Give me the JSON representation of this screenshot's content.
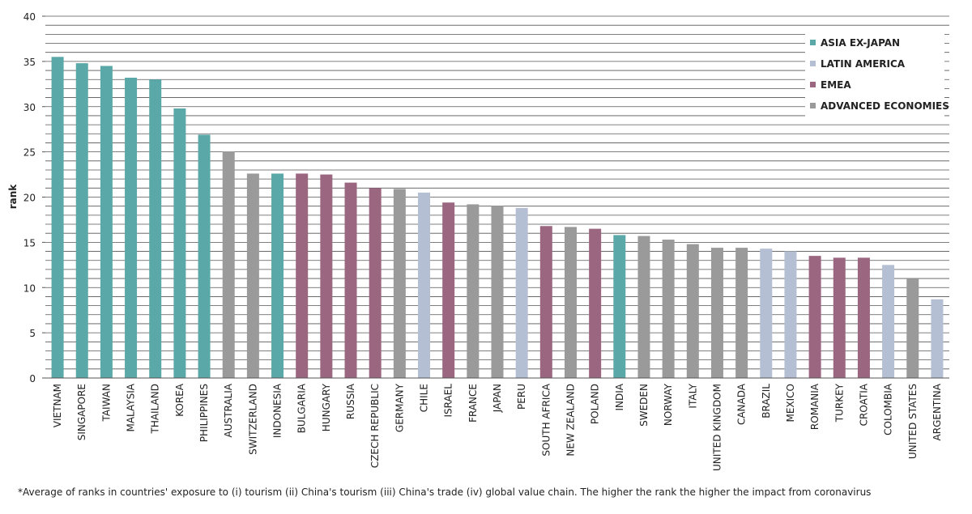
{
  "chart_data": {
    "type": "bar",
    "y_label": "rank",
    "footnote": "*Average of ranks in countries' exposure to (i) tourism (ii) China's tourism (iii) China's trade (iv) global value chain. The higher the rank the higher the impact from coronavirus",
    "categories": [
      "VIETNAM",
      "SINGAPORE",
      "TAIWAN",
      "MALAYSIA",
      "THAILAND",
      "KOREA",
      "PHILIPPINES",
      "AUSTRALIA",
      "SWITZERLAND",
      "INDONESIA",
      "BULGARIA",
      "HUNGARY",
      "RUSSIA",
      "CZECH REPUBLIC",
      "GERMANY",
      "CHILE",
      "ISRAEL",
      "FRANCE",
      "JAPAN",
      "PERU",
      "SOUTH AFRICA",
      "NEW ZEALAND",
      "POLAND",
      "INDIA",
      "SWEDEN",
      "NORWAY",
      "ITALY",
      "UNITED KINGDOM",
      "CANADA",
      "BRAZIL",
      "MEXICO",
      "ROMANIA",
      "TURKEY",
      "CROATIA",
      "COLOMBIA",
      "UNITED STATES",
      "ARGENTINA"
    ],
    "series": [
      {
        "name": "ASIA EX-JAPAN",
        "color": "#5ba8a8",
        "values": [
          35.5,
          34.8,
          34.5,
          33.2,
          33.0,
          29.8,
          26.9,
          null,
          null,
          22.6,
          null,
          null,
          null,
          null,
          null,
          null,
          null,
          null,
          null,
          null,
          null,
          null,
          null,
          15.8,
          null,
          null,
          null,
          null,
          null,
          null,
          null,
          null,
          null,
          null,
          null,
          null,
          null
        ]
      },
      {
        "name": "LATIN AMERICA",
        "color": "#b4bfd3",
        "values": [
          null,
          null,
          null,
          null,
          null,
          null,
          null,
          null,
          null,
          null,
          null,
          null,
          null,
          null,
          null,
          20.5,
          null,
          null,
          null,
          18.8,
          null,
          null,
          null,
          null,
          null,
          null,
          null,
          null,
          null,
          14.3,
          14.0,
          null,
          null,
          null,
          12.5,
          null,
          8.7
        ]
      },
      {
        "name": "EMEA",
        "color": "#9b6680",
        "values": [
          null,
          null,
          null,
          null,
          null,
          null,
          null,
          null,
          null,
          null,
          22.6,
          22.5,
          21.6,
          21.0,
          null,
          null,
          19.4,
          null,
          null,
          null,
          16.8,
          null,
          16.5,
          null,
          null,
          null,
          null,
          null,
          null,
          null,
          null,
          13.5,
          13.3,
          13.3,
          null,
          null,
          null
        ]
      },
      {
        "name": "ADVANCED ECONOMIES",
        "color": "#9a9a9a",
        "values": [
          null,
          null,
          null,
          null,
          null,
          null,
          null,
          25.0,
          22.6,
          null,
          null,
          null,
          null,
          null,
          20.9,
          null,
          null,
          19.2,
          19.0,
          null,
          null,
          16.7,
          null,
          null,
          15.7,
          15.3,
          14.8,
          14.4,
          14.4,
          null,
          null,
          null,
          null,
          null,
          null,
          11.0,
          null
        ]
      }
    ],
    "ylim": [
      0,
      40
    ],
    "yticks": [
      0,
      5,
      10,
      15,
      20,
      25,
      30,
      35,
      40
    ],
    "y_gridlines": [
      0,
      1,
      2,
      3,
      4,
      5,
      6,
      7,
      8,
      9,
      10,
      11,
      12,
      13,
      14,
      15,
      16,
      17,
      18,
      19,
      20,
      21,
      22,
      23,
      24,
      25,
      26,
      27,
      28,
      29,
      30,
      31,
      32,
      33,
      34,
      35,
      36,
      37,
      38,
      39,
      40
    ],
    "grid": true,
    "legend_position": "top-right"
  }
}
